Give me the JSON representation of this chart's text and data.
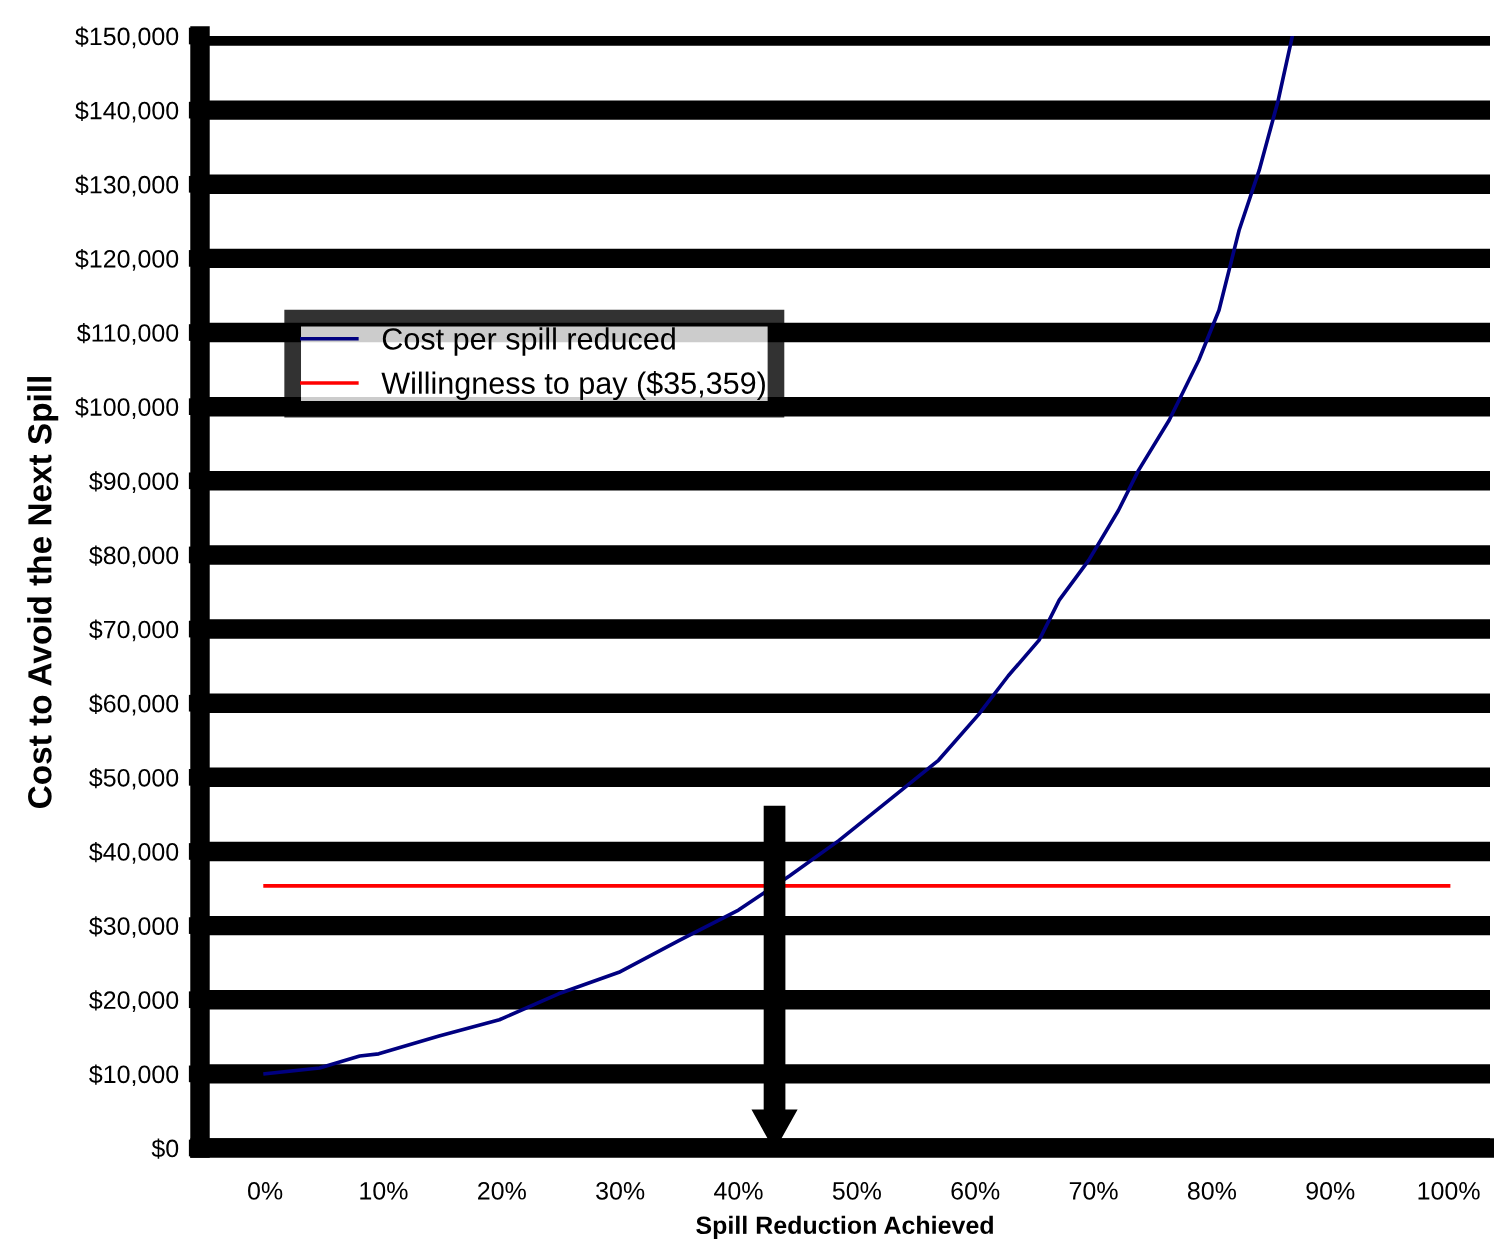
{
  "chart_data": {
    "type": "line",
    "xlabel": "Spill Reduction Achieved",
    "ylabel": "Cost to Avoid the Next Spill",
    "series": [
      {
        "name": "Cost per spill reduced",
        "color": "#000080",
        "x": [
          0,
          4.6,
          8,
          9.6,
          14.7,
          19.8,
          24.8,
          29.9,
          35,
          40,
          44.3,
          48.5,
          52.7,
          56.9,
          60.3,
          62.8,
          65.4,
          67.1,
          69.6,
          72.1,
          73.8,
          76.4,
          78.9,
          80.6,
          82.3,
          84,
          85.6,
          86.8
        ],
        "values": [
          10000,
          10800,
          12400,
          12700,
          15100,
          17300,
          20800,
          23700,
          28000,
          32100,
          36700,
          41500,
          46900,
          52300,
          58500,
          63700,
          68500,
          73900,
          79300,
          86000,
          91400,
          98200,
          106300,
          113000,
          123800,
          131900,
          141300,
          150000
        ]
      },
      {
        "name": "Willingness to pay ($35,359)",
        "color": "#ff0000",
        "x": [
          0,
          100
        ],
        "values": [
          35359,
          35359
        ]
      }
    ],
    "xlim": [
      -5.5,
      103.5
    ],
    "ylim": [
      0,
      150000
    ],
    "xticks": [
      {
        "value": 0,
        "label": "0%"
      },
      {
        "value": 10,
        "label": "10%"
      },
      {
        "value": 20,
        "label": "20%"
      },
      {
        "value": 30,
        "label": "30%"
      },
      {
        "value": 40,
        "label": "40%"
      },
      {
        "value": 50,
        "label": "50%"
      },
      {
        "value": 60,
        "label": "60%"
      },
      {
        "value": 70,
        "label": "70%"
      },
      {
        "value": 80,
        "label": "80%"
      },
      {
        "value": 90,
        "label": "90%"
      },
      {
        "value": 100,
        "label": "100%"
      }
    ],
    "yticks": [
      {
        "value": 0,
        "label": "$0"
      },
      {
        "value": 10000,
        "label": "$10,000"
      },
      {
        "value": 20000,
        "label": "$20,000"
      },
      {
        "value": 30000,
        "label": "$30,000"
      },
      {
        "value": 40000,
        "label": "$40,000"
      },
      {
        "value": 50000,
        "label": "$50,000"
      },
      {
        "value": 60000,
        "label": "$60,000"
      },
      {
        "value": 70000,
        "label": "$70,000"
      },
      {
        "value": 80000,
        "label": "$80,000"
      },
      {
        "value": 90000,
        "label": "$90,000"
      },
      {
        "value": 100000,
        "label": "$100,000"
      },
      {
        "value": 110000,
        "label": "$110,000"
      },
      {
        "value": 120000,
        "label": "$120,000"
      },
      {
        "value": 130000,
        "label": "$130,000"
      },
      {
        "value": 140000,
        "label": "$140,000"
      },
      {
        "value": 150000,
        "label": "$150,000"
      }
    ],
    "grid": "y",
    "legend": "top left",
    "marker": "none",
    "line_style": "solid"
  }
}
